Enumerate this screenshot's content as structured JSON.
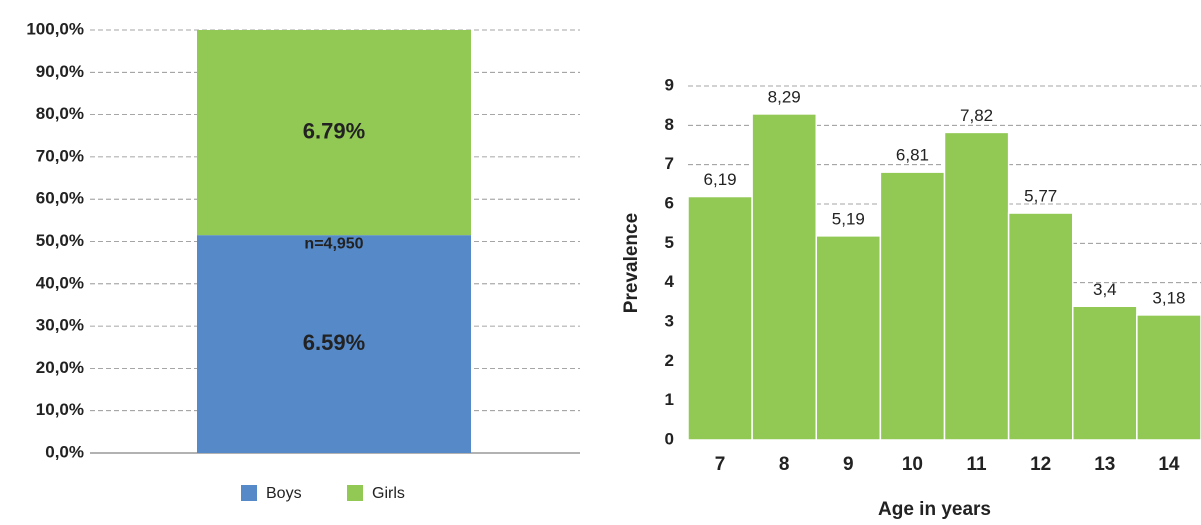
{
  "chart_data": [
    {
      "type": "stacked-bar",
      "categories": [
        null
      ],
      "series": [
        {
          "name": "Boys",
          "color": "#5589c8",
          "values": [
            51.5
          ]
        },
        {
          "name": "Girls",
          "color": "#92c854",
          "values": [
            48.5
          ]
        }
      ],
      "annotations": [
        "6.59%",
        "6.79%",
        "n=4,950"
      ],
      "ylim": [
        0,
        100
      ],
      "yticks": [
        {
          "value": 0,
          "label": "0,0%"
        },
        {
          "value": 10,
          "label": "10,0%"
        },
        {
          "value": 20,
          "label": "20,0%"
        },
        {
          "value": 30,
          "label": "30,0%"
        },
        {
          "value": 40,
          "label": "40,0%"
        },
        {
          "value": 50,
          "label": "50,0%"
        },
        {
          "value": 60,
          "label": "60,0%"
        },
        {
          "value": 70,
          "label": "70,0%"
        },
        {
          "value": 80,
          "label": "80,0%"
        },
        {
          "value": 90,
          "label": "90,0%"
        },
        {
          "value": 100,
          "label": "100,0%"
        }
      ],
      "grid": true,
      "legend": "bottom"
    },
    {
      "type": "bar",
      "xlabel": "Age in years",
      "ylabel": "Prevalence",
      "categories": [
        "7",
        "8",
        "9",
        "10",
        "11",
        "12",
        "13",
        "14"
      ],
      "values": [
        6.19,
        8.29,
        5.19,
        6.81,
        7.82,
        5.77,
        3.4,
        3.18
      ],
      "value_labels": [
        "6,19",
        "8,29",
        "5,19",
        "6,81",
        "7,82",
        "5,77",
        "3,4",
        "3,18"
      ],
      "color": "#92c854",
      "ylim": [
        0,
        9
      ],
      "yticks": [
        0,
        1,
        2,
        3,
        4,
        5,
        6,
        7,
        8,
        9
      ],
      "grid": true
    }
  ]
}
